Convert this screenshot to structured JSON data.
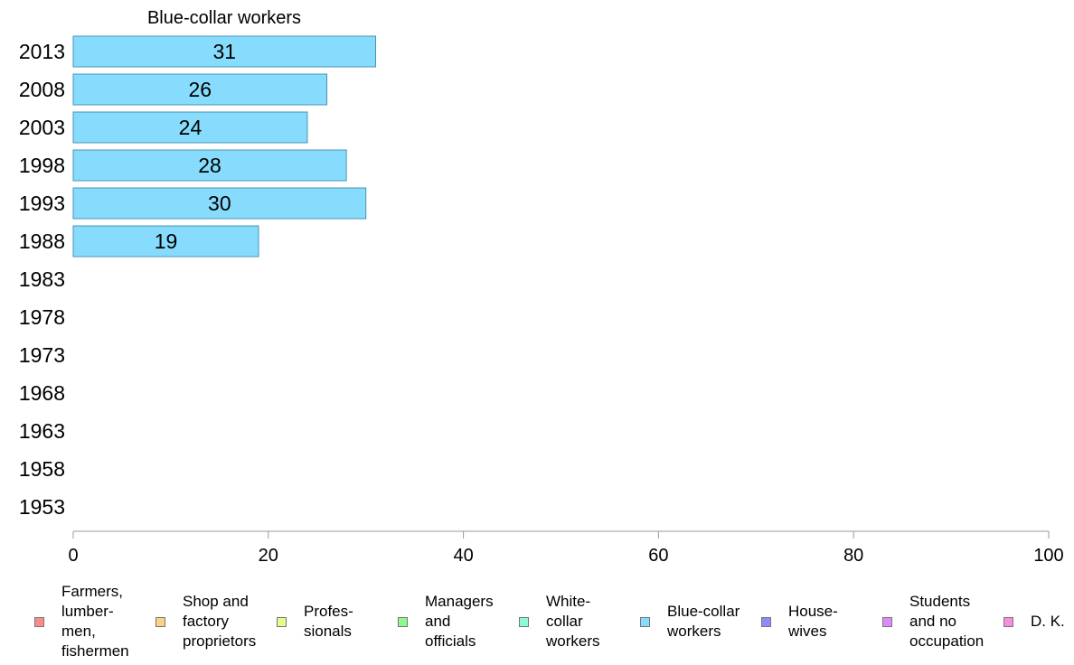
{
  "chart_data": {
    "type": "bar",
    "orientation": "horizontal",
    "title": "Blue-collar workers",
    "categories": [
      "2013",
      "2008",
      "2003",
      "1998",
      "1993",
      "1988",
      "1983",
      "1978",
      "1973",
      "1968",
      "1963",
      "1958",
      "1953"
    ],
    "series": [
      {
        "name": "Blue-collar workers",
        "values": [
          31,
          26,
          24,
          28,
          30,
          19,
          null,
          null,
          null,
          null,
          null,
          null,
          null
        ]
      }
    ],
    "value_labels": [
      "31",
      "26",
      "24",
      "28",
      "30",
      "19",
      "",
      "",
      "",
      "",
      "",
      "",
      ""
    ],
    "xlim": [
      0,
      100
    ],
    "xticks": [
      0,
      20,
      40,
      60,
      80,
      100
    ],
    "bar_color": "#87dcfd",
    "bar_border_color": "#4a93b3",
    "axis_color": "#999999",
    "legend_position": "bottom",
    "legend": [
      {
        "label": "Farmers,\nlumber-\nmen,\nfishermen",
        "color": "#fa8c8c"
      },
      {
        "label": "Shop and\nfactory\nproprietors",
        "color": "#fad282"
      },
      {
        "label": "Profes-\nsionals",
        "color": "#e3fa8c"
      },
      {
        "label": "Managers\nand\nofficials",
        "color": "#8cfa8c"
      },
      {
        "label": "White-\ncollar\nworkers",
        "color": "#8cfad2"
      },
      {
        "label": "Blue-collar\nworkers",
        "color": "#87dcfd"
      },
      {
        "label": "House-\nwives",
        "color": "#8c8cfa"
      },
      {
        "label": "Students\nand no\noccupation",
        "color": "#dc8cfa"
      },
      {
        "label": "D. K.",
        "color": "#fa8cdc"
      }
    ]
  }
}
